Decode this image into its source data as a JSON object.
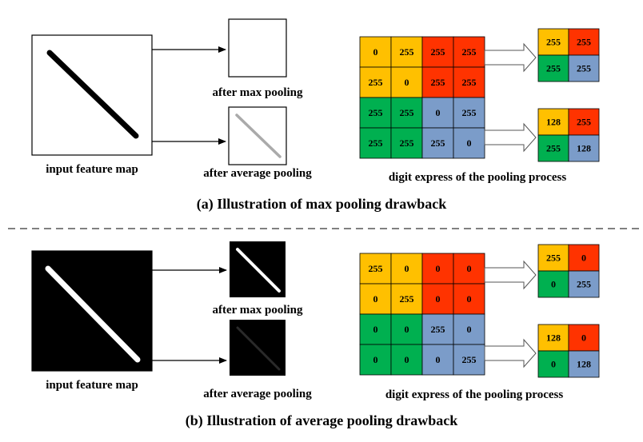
{
  "colors": {
    "yellow": "#ffc000",
    "red": "#ff3300",
    "green": "#00b050",
    "blue": "#7b9cc9",
    "white_line": "#ffffff",
    "black": "#000000"
  },
  "panel_a": {
    "caption": "(a) Illustration of max pooling drawback",
    "input_label": "input feature map",
    "max_label": "after max pooling",
    "avg_label": "after average pooling",
    "digit_label": "digit express of the pooling process",
    "grid": [
      [
        "0",
        "255",
        "255",
        "255"
      ],
      [
        "255",
        "0",
        "255",
        "255"
      ],
      [
        "255",
        "255",
        "0",
        "255"
      ],
      [
        "255",
        "255",
        "255",
        "0"
      ]
    ],
    "max_result": [
      [
        "255",
        "255"
      ],
      [
        "255",
        "255"
      ]
    ],
    "avg_result": [
      [
        "128",
        "255"
      ],
      [
        "255",
        "128"
      ]
    ]
  },
  "panel_b": {
    "caption": "(b) Illustration of average pooling drawback",
    "input_label": "input feature map",
    "max_label": "after max pooling",
    "avg_label": "after average pooling",
    "digit_label": "digit express of the pooling process",
    "grid": [
      [
        "255",
        "0",
        "0",
        "0"
      ],
      [
        "0",
        "255",
        "0",
        "0"
      ],
      [
        "0",
        "0",
        "255",
        "0"
      ],
      [
        "0",
        "0",
        "0",
        "255"
      ]
    ],
    "max_result": [
      [
        "255",
        "0"
      ],
      [
        "0",
        "255"
      ]
    ],
    "avg_result": [
      [
        "128",
        "0"
      ],
      [
        "0",
        "128"
      ]
    ]
  }
}
